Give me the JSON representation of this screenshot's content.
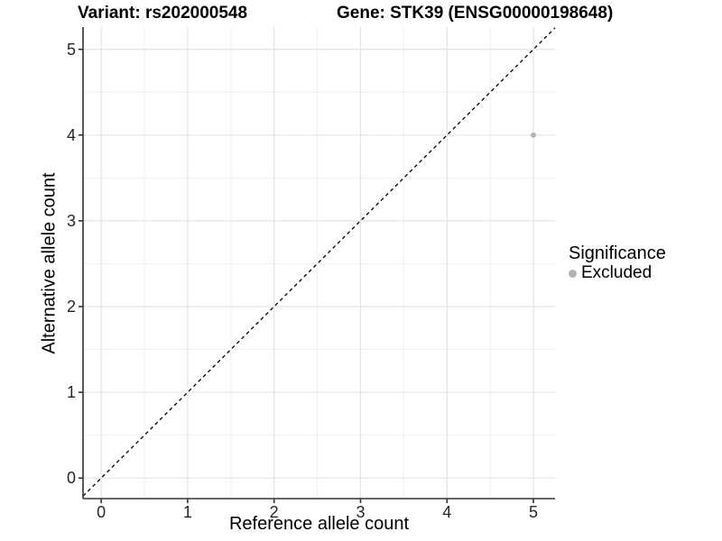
{
  "chart_data": {
    "type": "scatter",
    "title_left": "Variant: rs202000548",
    "title_right": "Gene: STK39 (ENSG00000198648)",
    "xlabel": "Reference allele count",
    "ylabel": "Alternative allele count",
    "xlim": [
      -0.21,
      5.25
    ],
    "ylim": [
      -0.24,
      5.26
    ],
    "x_ticks": [
      0,
      1,
      2,
      3,
      4,
      5
    ],
    "y_ticks": [
      0,
      1,
      2,
      3,
      4,
      5
    ],
    "x_minor_ticks": [
      0.5,
      1.5,
      2.5,
      3.5,
      4.5
    ],
    "y_minor_ticks": [
      0.5,
      1.5,
      2.5,
      3.5,
      4.5
    ],
    "grid": true,
    "legend_position": "right",
    "identity_line": {
      "style": "dashed",
      "slope": 1,
      "intercept": 0,
      "color": "#000000"
    },
    "series": [
      {
        "name": "Excluded",
        "color": "#b3b3b3",
        "points": [
          {
            "x": 5,
            "y": 4
          }
        ]
      }
    ],
    "legend": {
      "title": "Significance",
      "items": [
        {
          "label": "Excluded",
          "color": "#b3b3b3",
          "marker": "circle"
        }
      ]
    }
  },
  "colors": {
    "background": "#ffffff",
    "grid_major": "#e3e3e3",
    "grid_minor": "#f0f0f0",
    "axis_line": "#333333",
    "tick_mark": "#333333",
    "point": "#b3b3b3",
    "identity_line": "#000000",
    "title_text": "#000000",
    "tick_label": "#262626"
  }
}
